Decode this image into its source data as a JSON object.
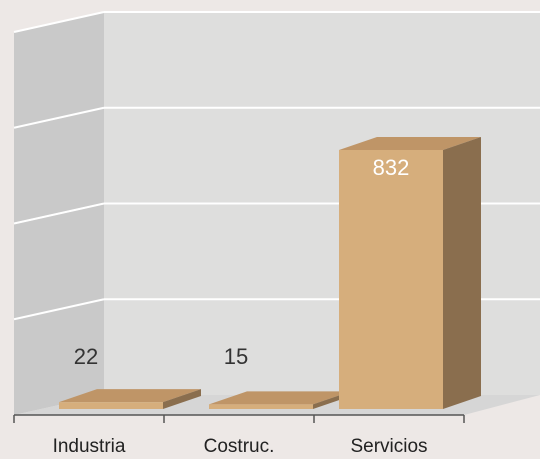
{
  "chart_data": {
    "type": "bar",
    "style": "3d",
    "title": "",
    "xlabel": "",
    "ylabel": "",
    "categories": [
      "Industria",
      "Costruc.",
      "Servicios"
    ],
    "values": [
      22,
      15,
      832
    ],
    "data_labels": [
      "22",
      "15",
      "832"
    ],
    "ylim": [
      0,
      1250
    ],
    "grid": true,
    "y_tick_labels_shown": false,
    "legend": "none"
  },
  "colors": {
    "background": "#ede8e6",
    "wall_back": "#dededd",
    "wall_side": "#c9c9c9",
    "floor": "#d6d6d6",
    "bar_front": "#d6ae7c",
    "bar_top": "#bf9567",
    "bar_side": "#8a6e4e",
    "grid": "#ffffff",
    "label_outside": "#333333",
    "label_inside": "#ffffff"
  }
}
